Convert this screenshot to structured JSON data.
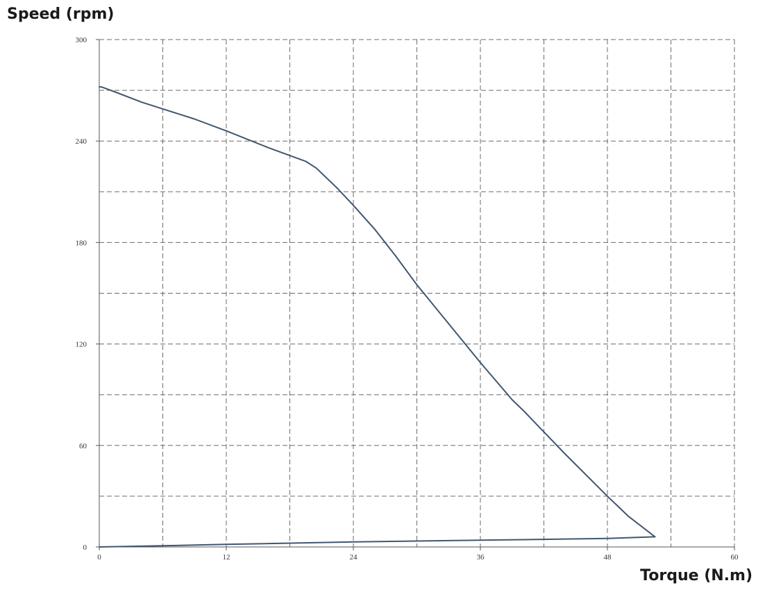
{
  "chart_data": {
    "type": "line",
    "title": "",
    "ylabel": "Speed (rpm)",
    "xlabel": "Torque (N.m)",
    "xlim": [
      0,
      60
    ],
    "ylim": [
      0,
      300
    ],
    "xticks": [
      0,
      12,
      24,
      36,
      48,
      60
    ],
    "yticks": [
      0,
      60,
      120,
      180,
      240,
      300
    ],
    "x_minor_gridlines": [
      6,
      18,
      30,
      42,
      54
    ],
    "y_minor_gridlines": [
      30,
      90,
      150,
      210,
      270
    ],
    "grid": true,
    "grid_style": "dashed",
    "series": [
      {
        "color": "#3f5670",
        "x": [
          0.0,
          0.2,
          1.5,
          4.0,
          6.0,
          9.0,
          12.0,
          16.0,
          19.5,
          20.5,
          21.5,
          22.5,
          24.0,
          26.0,
          28.0,
          30.0,
          33.0,
          36.0,
          39.0,
          40.0,
          44.0,
          48.0,
          50.0,
          52.5,
          48.0,
          36.0,
          24.0,
          12.0,
          6.0,
          0.0
        ],
        "y": [
          272,
          272,
          269,
          263,
          259,
          253,
          246,
          236,
          228,
          224,
          218,
          212,
          202,
          188,
          172,
          155,
          132,
          109,
          87,
          81,
          55,
          30,
          18,
          6,
          5,
          4,
          3,
          1.5,
          0.7,
          0
        ]
      }
    ]
  }
}
